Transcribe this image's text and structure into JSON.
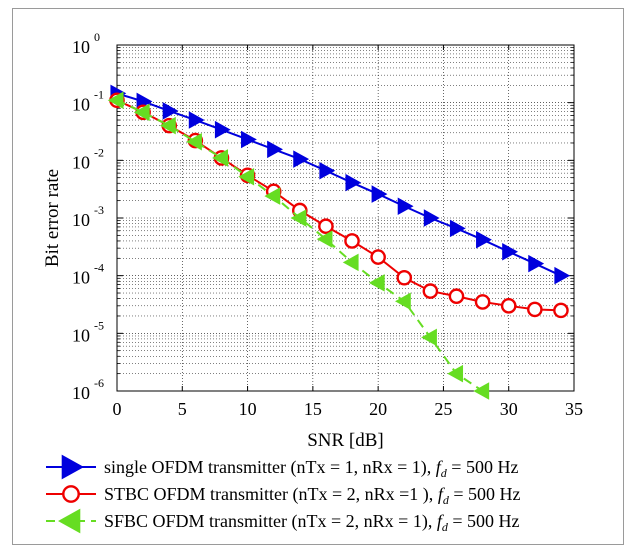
{
  "chart_data": {
    "type": "line",
    "xlabel": "SNR [dB]",
    "ylabel": "Bit error rate",
    "xlim": [
      0,
      35
    ],
    "ylim": [
      1e-06,
      1
    ],
    "yscale": "log",
    "grid": true,
    "legend_position": "bottom",
    "x_ticks": [
      "0",
      "5",
      "10",
      "15",
      "20",
      "25",
      "30",
      "35"
    ],
    "y_ticks": [
      {
        "base": "10",
        "exp": "0"
      },
      {
        "base": "10",
        "exp": "-1"
      },
      {
        "base": "10",
        "exp": "-2"
      },
      {
        "base": "10",
        "exp": "-3"
      },
      {
        "base": "10",
        "exp": "-4"
      },
      {
        "base": "10",
        "exp": "-5"
      },
      {
        "base": "10",
        "exp": "-6"
      }
    ],
    "series": [
      {
        "name": "single OFDM transmitter (nTx = 1, nRx = 1),",
        "fd_symbol": "f",
        "fd_sub": "d",
        "fd_value": "= 500 Hz",
        "color": "#0000dd",
        "marker": "triangle-right",
        "linestyle": "solid",
        "x": [
          0,
          2,
          4,
          6,
          8,
          10,
          12,
          14,
          16,
          18,
          20,
          22,
          24,
          26,
          28,
          30,
          32,
          34
        ],
        "y": [
          0.145,
          0.105,
          0.072,
          0.05,
          0.034,
          0.023,
          0.0155,
          0.0105,
          0.0066,
          0.0041,
          0.0026,
          0.0016,
          0.001,
          0.00066,
          0.00042,
          0.00026,
          0.000162,
          0.0001
        ]
      },
      {
        "name": "STBC OFDM transmitter (nTx = 2, nRx =1 ),",
        "fd_symbol": "f",
        "fd_sub": "d",
        "fd_value": "= 500 Hz",
        "color": "#ee0000",
        "marker": "circle",
        "linestyle": "solid",
        "x": [
          0,
          2,
          4,
          6,
          8,
          10,
          12,
          14,
          16,
          18,
          20,
          22,
          24,
          26,
          28,
          30,
          32,
          34
        ],
        "y": [
          0.11,
          0.068,
          0.04,
          0.022,
          0.011,
          0.0055,
          0.0029,
          0.00135,
          0.00072,
          0.0004,
          0.00021,
          9.2e-05,
          5.4e-05,
          4.4e-05,
          3.5e-05,
          3e-05,
          2.6e-05,
          2.5e-05
        ]
      },
      {
        "name": "SFBC OFDM transmitter (nTx = 2, nRx = 1),",
        "fd_symbol": "f",
        "fd_sub": "d",
        "fd_value": "= 500 Hz",
        "color": "#66dd22",
        "marker": "triangle-left",
        "linestyle": "dashed",
        "x": [
          0,
          2,
          4,
          6,
          8,
          10,
          12,
          14,
          16,
          18,
          20,
          22,
          24,
          26,
          28
        ],
        "y": [
          0.11,
          0.068,
          0.04,
          0.021,
          0.011,
          0.0052,
          0.0024,
          0.001,
          0.00043,
          0.00017,
          7.5e-05,
          3.6e-05,
          8.5e-06,
          2e-06,
          1e-06
        ]
      }
    ]
  }
}
